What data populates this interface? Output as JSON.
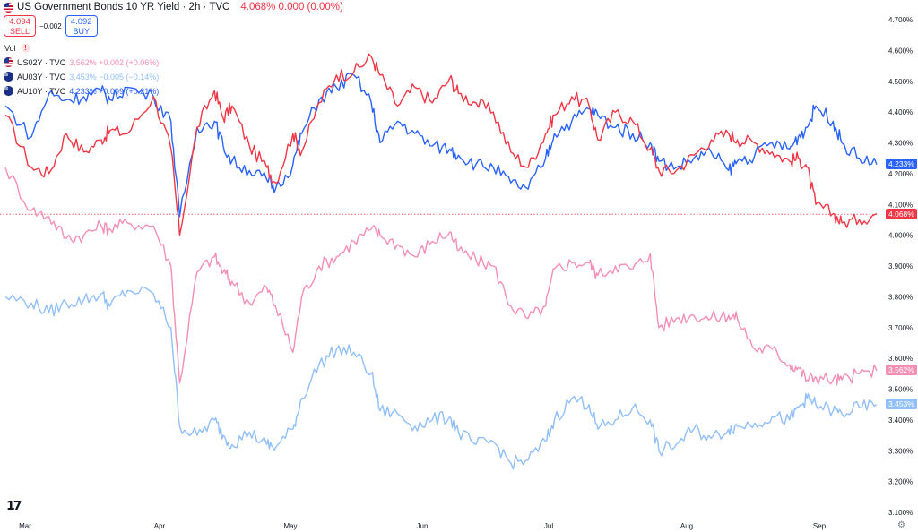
{
  "header": {
    "title": "US Government Bonds 10 YR Yield · 2h · TVC",
    "price": "4.068% 0.000 (0.00%)"
  },
  "trade": {
    "sell_price": "4.094",
    "sell_label": "SELL",
    "spread": "−0.002",
    "buy_price": "4.092",
    "buy_label": "BUY"
  },
  "vol_label": "Vol",
  "legend": [
    {
      "name": "US02Y · TVC",
      "value": "3.562% +0.002 (+0.06%)",
      "color": "#f48fb1",
      "flag": "us"
    },
    {
      "name": "AU03Y · TVC",
      "value": "3.453% −0.005 (−0.14%)",
      "color": "#90bff9",
      "flag": "au"
    },
    {
      "name": "AU10Y · TVC",
      "value": "4.233% +0.009 (+0.21%)",
      "color": "#2962ff",
      "flag": "au"
    }
  ],
  "price_labels": [
    {
      "text": "4.233%",
      "value": 4.233,
      "color": "#2962ff"
    },
    {
      "text": "4.068%",
      "value": 4.068,
      "color": "#f23645"
    },
    {
      "text": "3.562%",
      "value": 3.562,
      "color": "#f48fb1"
    },
    {
      "text": "3.453%",
      "value": 3.453,
      "color": "#90bff9"
    }
  ],
  "chart_data": {
    "type": "line",
    "x_ticks": [
      "Mar",
      "Apr",
      "May",
      "Jun",
      "Jul",
      "Aug",
      "Sep"
    ],
    "y_ticks": [
      "4.700%",
      "4.600%",
      "4.500%",
      "4.400%",
      "4.300%",
      "4.200%",
      "4.100%",
      "4.000%",
      "3.900%",
      "3.800%",
      "3.700%",
      "3.600%",
      "3.500%",
      "3.400%",
      "3.300%",
      "3.200%",
      "3.100%"
    ],
    "ylim": [
      3.1,
      4.7
    ],
    "reference_line": 4.068,
    "series": [
      {
        "name": "US Government Bonds 10 YR Yield",
        "color": "#f23645",
        "x": [
          0.0,
          0.03,
          0.05,
          0.07,
          0.09,
          0.11,
          0.12,
          0.14,
          0.17,
          0.19,
          0.2,
          0.22,
          0.24,
          0.25,
          0.26,
          0.28,
          0.3,
          0.31,
          0.33,
          0.34,
          0.36,
          0.38,
          0.4,
          0.42,
          0.43,
          0.45,
          0.47,
          0.49,
          0.51,
          0.52,
          0.54,
          0.56,
          0.58,
          0.6,
          0.62,
          0.63,
          0.65,
          0.67,
          0.68,
          0.7,
          0.72,
          0.74,
          0.75,
          0.77,
          0.79,
          0.81,
          0.83,
          0.84,
          0.86,
          0.88,
          0.9,
          0.91,
          0.92,
          0.93,
          0.95,
          0.96,
          0.98,
          1.0
        ],
        "values": [
          4.39,
          4.22,
          4.2,
          4.33,
          4.27,
          4.31,
          4.34,
          4.33,
          4.45,
          4.28,
          4.0,
          4.35,
          4.47,
          4.38,
          4.42,
          4.29,
          4.22,
          4.17,
          4.33,
          4.27,
          4.43,
          4.52,
          4.53,
          4.58,
          4.52,
          4.42,
          4.48,
          4.43,
          4.51,
          4.46,
          4.43,
          4.4,
          4.27,
          4.22,
          4.33,
          4.39,
          4.45,
          4.42,
          4.31,
          4.4,
          4.37,
          4.28,
          4.21,
          4.21,
          4.26,
          4.31,
          4.33,
          4.31,
          4.3,
          4.27,
          4.24,
          4.25,
          4.22,
          4.1,
          4.07,
          4.04,
          4.05,
          4.07
        ]
      },
      {
        "name": "US02Y · TVC",
        "color": "#f48fb1",
        "x": [
          0.0,
          0.03,
          0.05,
          0.07,
          0.09,
          0.11,
          0.12,
          0.14,
          0.17,
          0.19,
          0.2,
          0.22,
          0.24,
          0.25,
          0.26,
          0.28,
          0.3,
          0.31,
          0.33,
          0.34,
          0.36,
          0.38,
          0.4,
          0.42,
          0.43,
          0.45,
          0.47,
          0.49,
          0.51,
          0.52,
          0.54,
          0.56,
          0.58,
          0.6,
          0.62,
          0.63,
          0.65,
          0.67,
          0.68,
          0.7,
          0.72,
          0.74,
          0.75,
          0.77,
          0.79,
          0.81,
          0.83,
          0.84,
          0.86,
          0.88,
          0.9,
          0.91,
          0.92,
          0.93,
          0.95,
          0.96,
          0.98,
          1.0
        ],
        "values": [
          4.22,
          4.08,
          4.06,
          3.99,
          4.0,
          4.03,
          4.02,
          4.04,
          4.03,
          3.9,
          3.52,
          3.88,
          3.93,
          3.88,
          3.85,
          3.78,
          3.83,
          3.77,
          3.62,
          3.8,
          3.9,
          3.93,
          3.98,
          4.02,
          4.0,
          3.97,
          3.93,
          3.98,
          4.01,
          3.95,
          3.92,
          3.9,
          3.77,
          3.73,
          3.77,
          3.89,
          3.91,
          3.91,
          3.87,
          3.9,
          3.89,
          3.94,
          3.7,
          3.73,
          3.74,
          3.73,
          3.74,
          3.73,
          3.63,
          3.63,
          3.58,
          3.57,
          3.53,
          3.54,
          3.53,
          3.53,
          3.55,
          3.56
        ]
      },
      {
        "name": "AU03Y · TVC",
        "color": "#90bff9",
        "x": [
          0.0,
          0.03,
          0.05,
          0.07,
          0.09,
          0.11,
          0.12,
          0.14,
          0.17,
          0.19,
          0.2,
          0.22,
          0.24,
          0.25,
          0.26,
          0.28,
          0.3,
          0.31,
          0.33,
          0.34,
          0.36,
          0.38,
          0.4,
          0.42,
          0.43,
          0.45,
          0.47,
          0.49,
          0.51,
          0.52,
          0.54,
          0.56,
          0.58,
          0.6,
          0.62,
          0.63,
          0.65,
          0.67,
          0.68,
          0.7,
          0.72,
          0.74,
          0.75,
          0.77,
          0.79,
          0.81,
          0.83,
          0.84,
          0.86,
          0.88,
          0.9,
          0.91,
          0.92,
          0.93,
          0.95,
          0.96,
          0.98,
          1.0
        ],
        "values": [
          3.8,
          3.78,
          3.75,
          3.78,
          3.79,
          3.81,
          3.77,
          3.82,
          3.81,
          3.7,
          3.38,
          3.35,
          3.4,
          3.35,
          3.32,
          3.36,
          3.32,
          3.31,
          3.37,
          3.47,
          3.58,
          3.63,
          3.62,
          3.55,
          3.43,
          3.42,
          3.38,
          3.4,
          3.41,
          3.36,
          3.32,
          3.33,
          3.26,
          3.27,
          3.33,
          3.4,
          3.47,
          3.45,
          3.37,
          3.4,
          3.44,
          3.4,
          3.3,
          3.32,
          3.37,
          3.34,
          3.37,
          3.38,
          3.39,
          3.41,
          3.4,
          3.44,
          3.47,
          3.45,
          3.43,
          3.42,
          3.44,
          3.45
        ]
      },
      {
        "name": "AU10Y · TVC",
        "color": "#2962ff",
        "x": [
          0.0,
          0.03,
          0.05,
          0.07,
          0.09,
          0.11,
          0.12,
          0.14,
          0.17,
          0.19,
          0.2,
          0.22,
          0.24,
          0.25,
          0.26,
          0.28,
          0.3,
          0.31,
          0.33,
          0.34,
          0.36,
          0.38,
          0.4,
          0.42,
          0.43,
          0.45,
          0.47,
          0.49,
          0.51,
          0.52,
          0.54,
          0.56,
          0.58,
          0.6,
          0.62,
          0.63,
          0.65,
          0.67,
          0.68,
          0.7,
          0.72,
          0.74,
          0.75,
          0.77,
          0.79,
          0.81,
          0.83,
          0.84,
          0.86,
          0.88,
          0.9,
          0.91,
          0.92,
          0.93,
          0.95,
          0.96,
          0.98,
          1.0
        ],
        "values": [
          4.42,
          4.32,
          4.46,
          4.44,
          4.45,
          4.47,
          4.44,
          4.48,
          4.45,
          4.37,
          4.06,
          4.35,
          4.37,
          4.29,
          4.24,
          4.21,
          4.18,
          4.15,
          4.23,
          4.33,
          4.44,
          4.48,
          4.52,
          4.43,
          4.3,
          4.37,
          4.33,
          4.29,
          4.28,
          4.26,
          4.23,
          4.22,
          4.17,
          4.15,
          4.25,
          4.33,
          4.37,
          4.41,
          4.39,
          4.35,
          4.33,
          4.3,
          4.24,
          4.22,
          4.25,
          4.27,
          4.21,
          4.24,
          4.26,
          4.3,
          4.28,
          4.32,
          4.35,
          4.42,
          4.37,
          4.3,
          4.25,
          4.23
        ]
      }
    ]
  }
}
